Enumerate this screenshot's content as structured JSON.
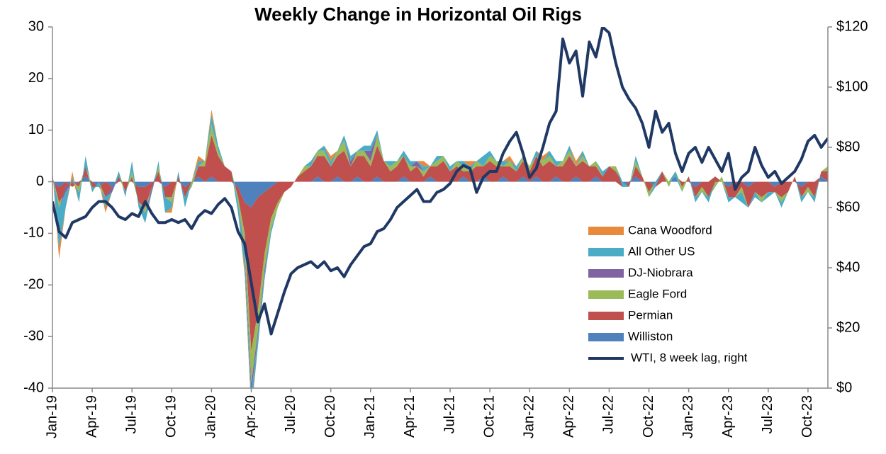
{
  "chart_data": {
    "type": "stacked-area-line",
    "title": "Weekly Change in Horizontal Oil Rigs",
    "categories": [
      "Jan-19",
      null,
      null,
      null,
      null,
      null,
      "Apr-19",
      null,
      null,
      null,
      null,
      null,
      "Jul-19",
      null,
      null,
      null,
      null,
      null,
      "Oct-19",
      null,
      null,
      null,
      null,
      null,
      "Jan-20",
      null,
      null,
      null,
      null,
      null,
      "Apr-20",
      null,
      null,
      null,
      null,
      null,
      "Jul-20",
      null,
      null,
      null,
      null,
      null,
      "Oct-20",
      null,
      null,
      null,
      null,
      null,
      "Jan-21",
      null,
      null,
      null,
      null,
      null,
      "Apr-21",
      null,
      null,
      null,
      null,
      null,
      "Jul-21",
      null,
      null,
      null,
      null,
      null,
      "Oct-21",
      null,
      null,
      null,
      null,
      null,
      "Jan-22",
      null,
      null,
      null,
      null,
      null,
      "Apr-22",
      null,
      null,
      null,
      null,
      null,
      "Jul-22",
      null,
      null,
      null,
      null,
      null,
      "Oct-22",
      null,
      null,
      null,
      null,
      null,
      "Jan-23",
      null,
      null,
      null,
      null,
      null,
      "Apr-23",
      null,
      null,
      null,
      null,
      null,
      "Jul-23",
      null,
      null,
      null,
      null,
      null,
      "Oct-23",
      null,
      null,
      null
    ],
    "series": [
      {
        "name": "Williston",
        "color": "#4F81BD",
        "values": [
          0,
          -1,
          0,
          -1,
          0,
          1,
          0,
          -1,
          0,
          -1,
          0,
          0,
          0,
          -1,
          -1,
          0,
          0,
          -1,
          0,
          0,
          -1,
          0,
          1,
          0,
          1,
          0,
          0,
          0,
          -1,
          -4,
          -5,
          -3,
          -2,
          -1,
          0,
          0,
          0,
          0,
          0,
          0,
          1,
          0,
          0,
          1,
          0,
          0,
          1,
          0,
          0,
          1,
          0,
          0,
          0,
          1,
          0,
          0,
          0,
          1,
          0,
          0,
          0,
          0,
          1,
          0,
          0,
          1,
          0,
          0,
          1,
          0,
          0,
          1,
          0,
          1,
          0,
          0,
          1,
          0,
          0,
          1,
          0,
          0,
          1,
          0,
          0,
          0,
          -1,
          0,
          1,
          0,
          0,
          -1,
          0,
          0,
          1,
          0,
          0,
          -1,
          0,
          0,
          1,
          0,
          -1,
          0,
          0,
          -1,
          0,
          0,
          0,
          -1,
          0,
          0,
          0,
          -1,
          0,
          0,
          1,
          0
        ]
      },
      {
        "name": "Permian",
        "color": "#C0504D",
        "values": [
          1,
          -3,
          -2,
          1,
          -1,
          2,
          -2,
          1,
          -3,
          -1,
          2,
          -2,
          1,
          -3,
          -4,
          -1,
          2,
          -2,
          -3,
          1,
          -2,
          -1,
          2,
          3,
          8,
          5,
          3,
          2,
          -2,
          -6,
          -28,
          -22,
          -12,
          -6,
          -4,
          -2,
          -1,
          1,
          2,
          3,
          4,
          5,
          3,
          4,
          6,
          3,
          4,
          5,
          3,
          6,
          4,
          2,
          3,
          4,
          2,
          3,
          1,
          2,
          3,
          4,
          2,
          3,
          1,
          2,
          3,
          2,
          4,
          3,
          2,
          3,
          2,
          3,
          2,
          4,
          3,
          4,
          2,
          3,
          5,
          2,
          4,
          3,
          2,
          1,
          3,
          2,
          1,
          -1,
          2,
          1,
          -2,
          1,
          2,
          -1,
          1,
          -1,
          1,
          -2,
          -1,
          -3,
          -2,
          1,
          -2,
          -3,
          -1,
          -4,
          -2,
          -3,
          -2,
          -1,
          -3,
          -2,
          1,
          -2,
          -1,
          -3,
          1,
          2
        ]
      },
      {
        "name": "Eagle Ford",
        "color": "#9BBB59",
        "values": [
          0,
          -1,
          1,
          0,
          -1,
          0,
          1,
          -1,
          0,
          1,
          -1,
          0,
          1,
          0,
          -1,
          0,
          1,
          0,
          -1,
          0,
          0,
          1,
          0,
          1,
          2,
          1,
          0,
          0,
          -1,
          -3,
          -6,
          -4,
          -3,
          -2,
          -1,
          0,
          0,
          0,
          1,
          0,
          1,
          1,
          0,
          1,
          2,
          0,
          1,
          1,
          1,
          2,
          0,
          1,
          1,
          0,
          1,
          0,
          1,
          0,
          1,
          1,
          0,
          1,
          1,
          0,
          1,
          0,
          1,
          1,
          0,
          1,
          0,
          1,
          1,
          0,
          1,
          1,
          0,
          1,
          1,
          0,
          1,
          0,
          1,
          0,
          0,
          1,
          0,
          0,
          1,
          0,
          -1,
          0,
          0,
          1,
          0,
          -1,
          0,
          0,
          -1,
          0,
          1,
          -1,
          0,
          0,
          -1,
          0,
          0,
          -1,
          0,
          0,
          -1,
          0,
          0,
          0,
          -1,
          0,
          0,
          1
        ]
      },
      {
        "name": "DJ-Niobrara",
        "color": "#8064A2",
        "values": [
          0,
          0,
          -1,
          0,
          0,
          0,
          0,
          0,
          0,
          -1,
          0,
          0,
          0,
          0,
          0,
          -1,
          0,
          0,
          0,
          0,
          0,
          0,
          0,
          0,
          0,
          0,
          0,
          0,
          0,
          -1,
          -2,
          -1,
          -1,
          0,
          0,
          0,
          0,
          0,
          0,
          0,
          0,
          0,
          0,
          0,
          0,
          1,
          0,
          0,
          2,
          0,
          0,
          0,
          0,
          0,
          0,
          1,
          0,
          0,
          0,
          0,
          0,
          0,
          0,
          0,
          0,
          0,
          0,
          0,
          0,
          0,
          0,
          0,
          0,
          0,
          0,
          0,
          0,
          0,
          0,
          0,
          0,
          0,
          0,
          0,
          0,
          0,
          0,
          0,
          0,
          0,
          0,
          0,
          0,
          0,
          0,
          0,
          0,
          0,
          0,
          0,
          0,
          0,
          0,
          0,
          0,
          0,
          0,
          0,
          0,
          0,
          0,
          0,
          0,
          0,
          0,
          0,
          0,
          0
        ]
      },
      {
        "name": "All Other US",
        "color": "#4BACC6",
        "values": [
          1,
          -8,
          -3,
          1,
          -2,
          2,
          -1,
          1,
          -2,
          0,
          1,
          -1,
          2,
          -1,
          -2,
          0,
          1,
          -3,
          -1,
          1,
          -2,
          0,
          1,
          0,
          2,
          1,
          0,
          0,
          -2,
          -3,
          -3,
          -2,
          -1,
          -1,
          0,
          0,
          0,
          0,
          0,
          1,
          0,
          1,
          1,
          0,
          1,
          1,
          0,
          1,
          1,
          1,
          0,
          1,
          0,
          1,
          1,
          0,
          1,
          0,
          1,
          0,
          1,
          0,
          1,
          1,
          0,
          2,
          1,
          0,
          1,
          0,
          1,
          0,
          0,
          1,
          0,
          1,
          1,
          0,
          1,
          0,
          1,
          0,
          0,
          1,
          0,
          0,
          -1,
          0,
          1,
          0,
          0,
          -1,
          0,
          0,
          -1,
          0,
          0,
          -1,
          0,
          -1,
          0,
          0,
          -1,
          0,
          -2,
          0,
          -1,
          0,
          -1,
          0,
          -1,
          0,
          0,
          -1,
          0,
          -1,
          0,
          0
        ]
      },
      {
        "name": "Cana Woodford",
        "color": "#E8893C",
        "values": [
          0,
          -2,
          0,
          1,
          0,
          0,
          0,
          0,
          -1,
          0,
          0,
          0,
          0,
          0,
          0,
          0,
          0,
          0,
          -1,
          0,
          0,
          0,
          1,
          0,
          1,
          0,
          0,
          0,
          0,
          -1,
          -1,
          0,
          0,
          0,
          0,
          0,
          0,
          0,
          0,
          0,
          0,
          0,
          1,
          0,
          0,
          0,
          0,
          0,
          0,
          0,
          0,
          0,
          0,
          0,
          0,
          0,
          1,
          0,
          0,
          0,
          0,
          0,
          0,
          1,
          0,
          0,
          0,
          0,
          0,
          1,
          0,
          0,
          0,
          0,
          1,
          0,
          0,
          0,
          0,
          1,
          0,
          0,
          0,
          0,
          0,
          0,
          0,
          0,
          0,
          0,
          0,
          0,
          0,
          0,
          0,
          0,
          0,
          0,
          0,
          0,
          0,
          0,
          0,
          0,
          0,
          0,
          0,
          0,
          0,
          0,
          0,
          0,
          0,
          0,
          0,
          0,
          0,
          0
        ]
      },
      {
        "name": "WTI, 8 week lag, right",
        "color": "#1F3864",
        "axis": "y2",
        "values": [
          62,
          52,
          50,
          55,
          56,
          57,
          60,
          62,
          62,
          60,
          57,
          56,
          58,
          57,
          62,
          58,
          55,
          55,
          56,
          55,
          56,
          53,
          57,
          59,
          58,
          61,
          63,
          60,
          52,
          48,
          35,
          22,
          28,
          18,
          25,
          32,
          38,
          40,
          41,
          42,
          40,
          42,
          39,
          40,
          37,
          41,
          44,
          47,
          48,
          52,
          53,
          56,
          60,
          62,
          64,
          66,
          62,
          62,
          65,
          66,
          68,
          72,
          74,
          73,
          65,
          70,
          72,
          72,
          78,
          82,
          85,
          78,
          70,
          73,
          80,
          88,
          92,
          116,
          108,
          112,
          97,
          115,
          110,
          120,
          118,
          108,
          100,
          96,
          93,
          88,
          80,
          92,
          85,
          88,
          78,
          72,
          78,
          80,
          75,
          80,
          76,
          72,
          78,
          66,
          70,
          72,
          80,
          74,
          70,
          72,
          68,
          70,
          72,
          76,
          82,
          84,
          80,
          83
        ]
      }
    ],
    "ylim": [
      -40,
      30
    ],
    "yticks": [
      -40,
      -30,
      -20,
      -10,
      0,
      10,
      20,
      30
    ],
    "y2lim": [
      0,
      120
    ],
    "y2ticks": [
      {
        "value": 0,
        "label": "$0"
      },
      {
        "value": 20,
        "label": "$20"
      },
      {
        "value": 40,
        "label": "$40"
      },
      {
        "value": 60,
        "label": "$60"
      },
      {
        "value": 80,
        "label": "$80"
      },
      {
        "value": 100,
        "label": "$100"
      },
      {
        "value": 120,
        "label": "$120"
      }
    ],
    "grid": false,
    "legend": "lower-right"
  }
}
